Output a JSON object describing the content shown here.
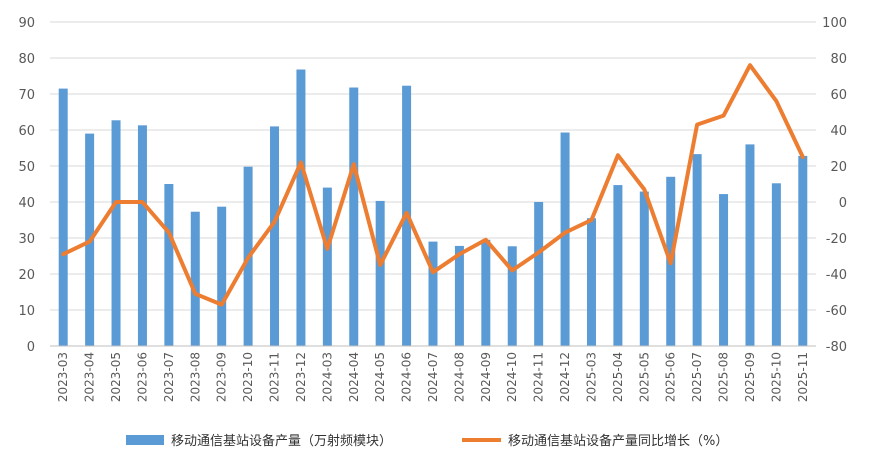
{
  "chart_data": {
    "type": "bar",
    "title": "",
    "xlabel": "",
    "ylabel": "",
    "categories": [
      "2023-03",
      "2023-04",
      "2023-05",
      "2023-06",
      "2023-07",
      "2023-08",
      "2023-09",
      "2023-10",
      "2023-11",
      "2023-12",
      "2024-03",
      "2024-04",
      "2024-05",
      "2024-06",
      "2024-07",
      "2024-08",
      "2024-09",
      "2024-10",
      "2024-11",
      "2024-12",
      "2025-03",
      "2025-04",
      "2025-05",
      "2025-06",
      "2025-07",
      "2025-08",
      "2025-09",
      "2025-10",
      "2025-11"
    ],
    "ylim": [
      0,
      90
    ],
    "y_ticks": [
      0,
      10,
      20,
      30,
      40,
      50,
      60,
      70,
      80,
      90
    ],
    "y2lim": [
      -80,
      100
    ],
    "y2_ticks": [
      -80,
      -60,
      -40,
      -20,
      0,
      20,
      40,
      60,
      80,
      100
    ],
    "series": [
      {
        "name": "移动通信基站设备产量（万射频模块）",
        "kind": "bar",
        "axis": "left",
        "color": "#5B9BD5",
        "values": [
          71.5,
          59,
          62.7,
          61.3,
          45,
          37.3,
          38.7,
          49.8,
          61,
          76.8,
          44,
          71.8,
          40.3,
          72.3,
          29,
          27.8,
          29.5,
          27.7,
          40,
          59.3,
          35.5,
          44.7,
          42.9,
          47,
          53.3,
          42.2,
          56,
          45.2,
          52.8
        ]
      },
      {
        "name": "移动通信基站设备产量同比增长（%）",
        "kind": "line",
        "axis": "right",
        "color": "#ED7D31",
        "values": [
          -29,
          -22,
          0,
          0,
          -17,
          -51,
          -57,
          -31,
          -11,
          22,
          -26,
          21,
          -35,
          -6,
          -39,
          -29,
          -21,
          -38,
          -28,
          -17,
          -10,
          26,
          7,
          -34,
          43,
          48,
          76,
          56,
          25
        ]
      }
    ],
    "legend": {
      "placement": "bottom"
    }
  }
}
